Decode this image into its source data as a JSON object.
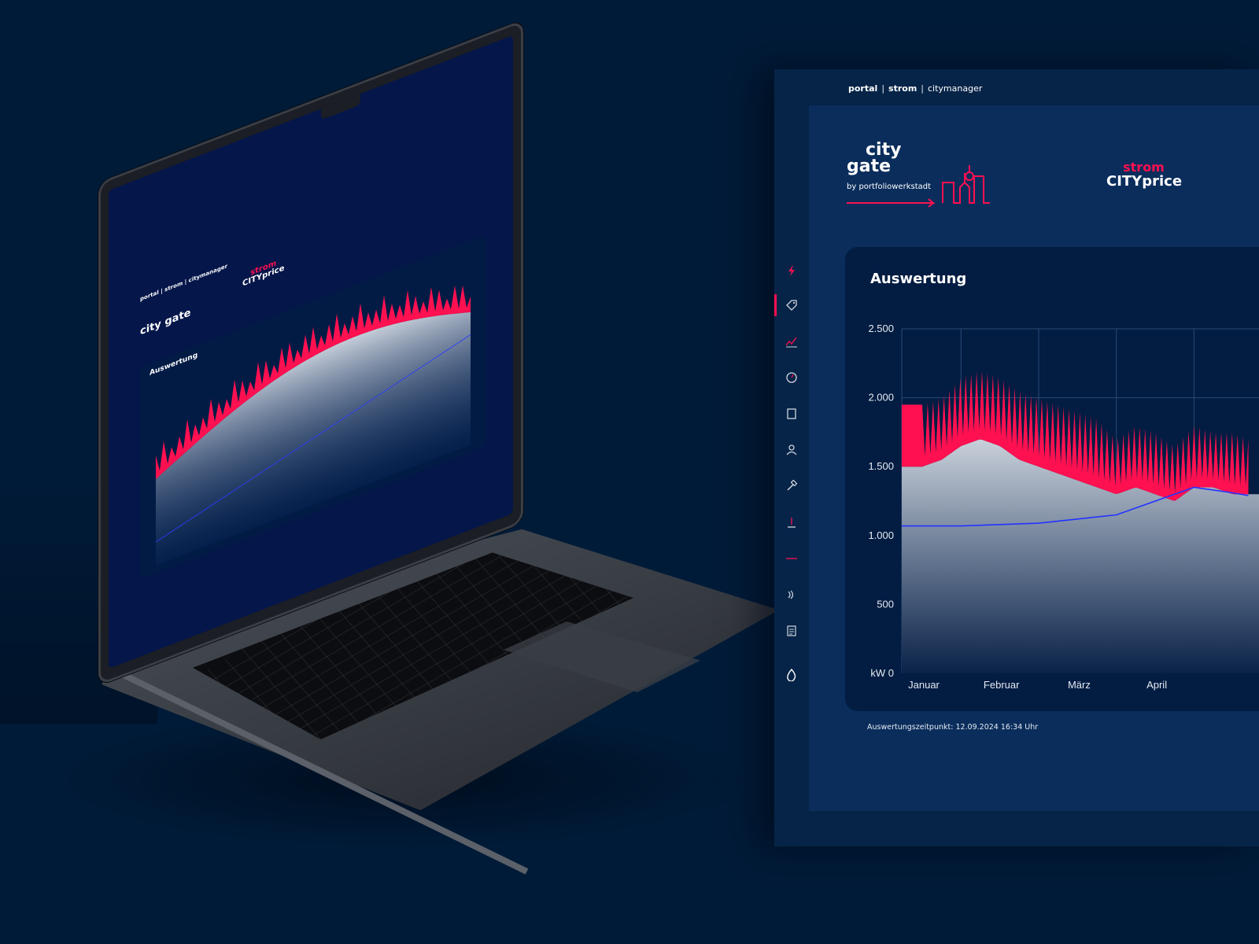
{
  "app": {
    "breadcrumb": [
      {
        "label": "portal",
        "bold": true
      },
      {
        "label": "strom",
        "bold": true
      },
      {
        "label": "citymanager",
        "bold": false
      }
    ],
    "logo": {
      "line1": "city",
      "line2": "gate",
      "subtitle": "by portfoliowerkstadt"
    },
    "brand": {
      "line1": "strom",
      "line2": "CITYprice"
    },
    "chart_card": {
      "title": "Auswertung"
    },
    "footnote": "Auswertungszeitpunkt: 12.09.2024 16:34 Uhr"
  },
  "sidebar": {
    "items": [
      {
        "icon": "lightning-icon",
        "active": false
      },
      {
        "icon": "tag-icon",
        "active": true
      },
      {
        "icon": "trend-icon",
        "active": false
      },
      {
        "icon": "gauge-icon",
        "active": false
      },
      {
        "icon": "document-icon",
        "active": false
      },
      {
        "icon": "user-icon",
        "active": false
      },
      {
        "icon": "hammer-icon",
        "active": false
      },
      {
        "icon": "meter-icon",
        "active": false
      },
      {
        "icon": "line-icon",
        "active": false
      },
      {
        "icon": "signal-icon",
        "active": false
      },
      {
        "icon": "report-icon",
        "active": false
      },
      {
        "icon": "flame-icon",
        "active": false
      }
    ]
  },
  "mockup": {
    "nav": "portal | strom | citymanager",
    "logo": "city gate",
    "brand_line1": "strom",
    "brand_line2": "CITYprice",
    "card_title": "Auswertung"
  },
  "colors": {
    "background": "#001b38",
    "panel": "#062448",
    "content": "#0a2d5c",
    "card": "#021c42",
    "accent_red": "#ff1050",
    "line_blue": "#2233ff"
  },
  "chart_data": {
    "type": "area",
    "title": "Auswertung",
    "ylabel": "kW",
    "ylim": [
      0,
      2500
    ],
    "yticks": [
      0,
      500,
      1000,
      1500,
      2000,
      2500
    ],
    "ytick_labels": [
      "kW 0",
      "500",
      "1.000",
      "1.500",
      "2.000",
      "2.500"
    ],
    "categories": [
      "Januar",
      "Februar",
      "März",
      "April"
    ],
    "grid": true,
    "series": [
      {
        "kind": "peak-area",
        "color": "#ff1050",
        "x": [
          0,
          0.25,
          0.5,
          0.75,
          1.0,
          1.25,
          1.5,
          1.75,
          2.0,
          2.25,
          2.5,
          2.75,
          3.0,
          3.25,
          3.5,
          3.75,
          4.0,
          4.2
        ],
        "peak": [
          1950,
          2000,
          2150,
          2200,
          2150,
          2050,
          2000,
          1950,
          1900,
          1850,
          1700,
          1800,
          1750,
          1650,
          1800,
          1750,
          1750,
          1700
        ],
        "base": [
          1500,
          1550,
          1650,
          1700,
          1650,
          1550,
          1500,
          1450,
          1400,
          1350,
          1300,
          1350,
          1300,
          1250,
          1350,
          1350,
          1300,
          1300
        ]
      },
      {
        "kind": "line",
        "color": "#2233ff",
        "x": [
          0,
          0.5,
          1.0,
          1.5,
          2.0,
          2.5,
          3.0,
          3.5,
          4.0,
          4.2
        ],
        "values": [
          1070,
          1070,
          1080,
          1090,
          1120,
          1150,
          1250,
          1350,
          1310,
          1290
        ]
      }
    ]
  }
}
